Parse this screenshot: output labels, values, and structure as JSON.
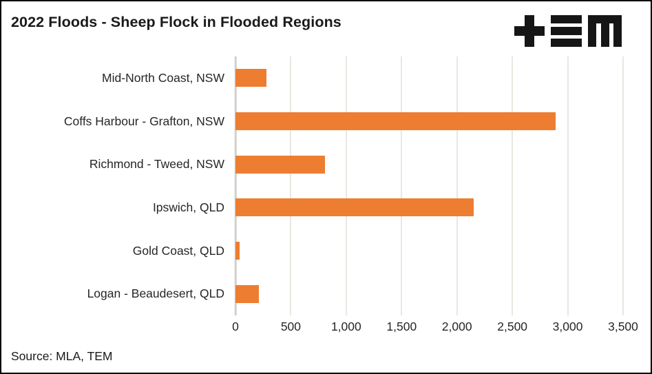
{
  "title": "2022 Floods - Sheep Flock in Flooded Regions",
  "source": "Source: MLA, TEM",
  "logo": {
    "name": "TEM logo",
    "glyphs": [
      "plus",
      "triple-bar",
      "M"
    ]
  },
  "colors": {
    "bar": "#ED7D31",
    "gridline": "#E8E7E0",
    "axis_line": "#D2D0CB",
    "logo": "#161616",
    "text": "#262626"
  },
  "chart_data": {
    "type": "bar",
    "orientation": "horizontal",
    "title": "2022 Floods - Sheep Flock in Flooded Regions",
    "categories": [
      "Mid-North Coast, NSW",
      "Coffs Harbour - Grafton, NSW",
      "Richmond - Tweed, NSW",
      "Ipswich, QLD",
      "Gold Coast, QLD",
      "Logan - Beaudesert, QLD"
    ],
    "values": [
      280,
      2890,
      810,
      2150,
      40,
      210
    ],
    "xlabel": "",
    "ylabel": "",
    "xlim": [
      0,
      3500
    ],
    "xticks": [
      0,
      500,
      1000,
      1500,
      2000,
      2500,
      3000,
      3500
    ],
    "xtick_labels": [
      "0",
      "500",
      "1,000",
      "1,500",
      "2,000",
      "2,500",
      "3,000",
      "3,500"
    ],
    "grid": true,
    "legend": false
  }
}
